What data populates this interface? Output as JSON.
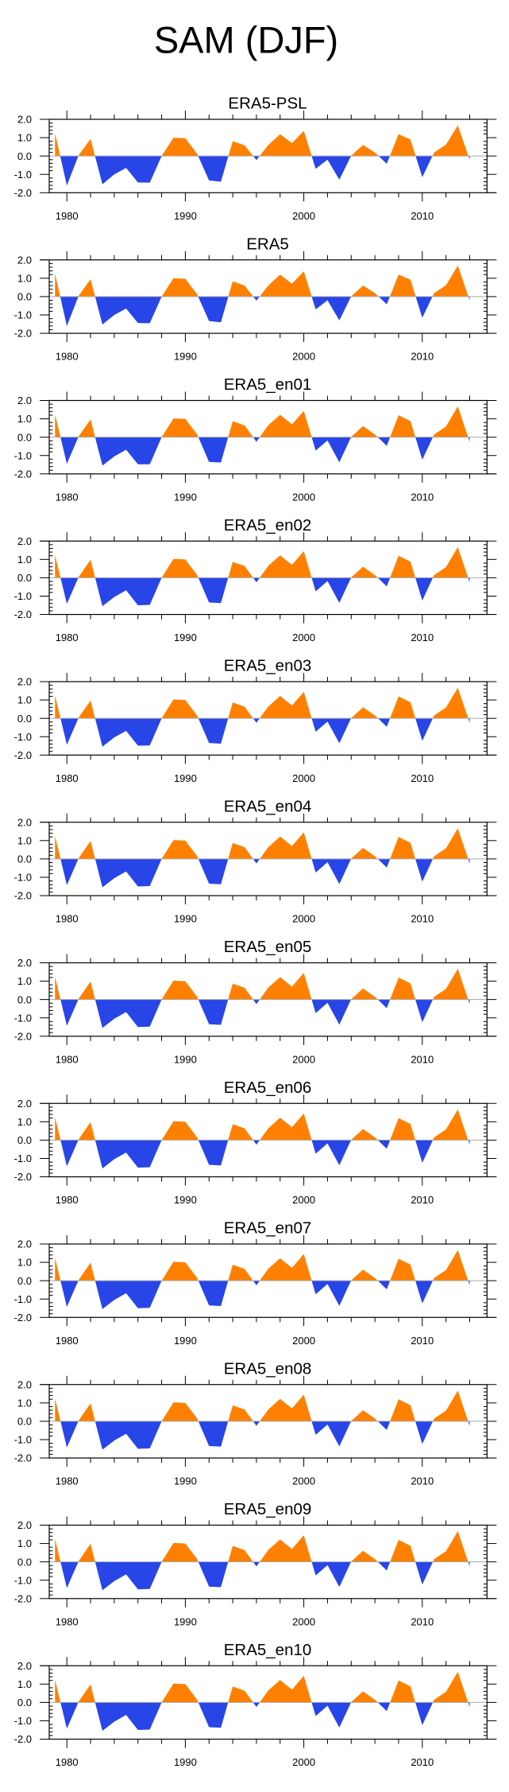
{
  "chart_data": {
    "type": "area",
    "title": "SAM (DJF)",
    "xlabel": "",
    "ylabel": "",
    "xlim": [
      1978.7,
      2015.7
    ],
    "ylim": [
      -2.0,
      2.0
    ],
    "xticks": [
      1980,
      1990,
      2000,
      2010
    ],
    "xtick_labels": [
      "1980",
      "1990",
      "2000",
      "2010"
    ],
    "yticks": [
      2.0,
      1.0,
      0.0,
      -1.0,
      -2.0
    ],
    "ytick_labels": [
      "2.0",
      "1.0",
      "0.0",
      "-1.0",
      "-2.0"
    ],
    "grid": false,
    "legend": "none",
    "colors": {
      "positive": "#ff8000",
      "negative": "#2845e8",
      "zero_line": "#a8a8a8",
      "frame": "#000000"
    },
    "x": [
      1979,
      1980,
      1981,
      1982,
      1983,
      1984,
      1985,
      1986,
      1987,
      1988,
      1989,
      1990,
      1991,
      1992,
      1993,
      1994,
      1995,
      1996,
      1997,
      1998,
      1999,
      2000,
      2001,
      2002,
      2003,
      2004,
      2005,
      2006,
      2007,
      2008,
      2009,
      2010,
      2011,
      2012,
      2013,
      2014
    ],
    "panels": [
      {
        "title": "ERA5-PSL",
        "values": [
          1.26,
          -1.61,
          0.05,
          0.93,
          -1.54,
          -1.0,
          -0.65,
          -1.44,
          -1.45,
          0.0,
          1.0,
          0.97,
          0.12,
          -1.33,
          -1.4,
          0.81,
          0.58,
          -0.22,
          0.6,
          1.19,
          0.7,
          1.37,
          -0.7,
          -0.2,
          -1.29,
          0.02,
          0.6,
          0.19,
          -0.42,
          1.19,
          0.9,
          -1.15,
          0.19,
          0.62,
          1.67,
          -0.2
        ]
      },
      {
        "title": "ERA5",
        "values": [
          1.26,
          -1.6,
          0.05,
          0.95,
          -1.52,
          -1.0,
          -0.65,
          -1.44,
          -1.45,
          0.0,
          1.0,
          0.97,
          0.12,
          -1.33,
          -1.4,
          0.83,
          0.6,
          -0.22,
          0.6,
          1.2,
          0.7,
          1.38,
          -0.7,
          -0.2,
          -1.3,
          0.02,
          0.6,
          0.19,
          -0.42,
          1.2,
          0.92,
          -1.15,
          0.19,
          0.62,
          1.69,
          -0.2
        ]
      },
      {
        "title": "ERA5_en01",
        "values": [
          1.24,
          -1.45,
          0.05,
          0.97,
          -1.55,
          -1.05,
          -0.68,
          -1.48,
          -1.48,
          0.0,
          1.02,
          1.0,
          0.15,
          -1.35,
          -1.38,
          0.87,
          0.64,
          -0.25,
          0.65,
          1.22,
          0.7,
          1.43,
          -0.73,
          -0.18,
          -1.37,
          0.02,
          0.6,
          0.15,
          -0.47,
          1.2,
          0.88,
          -1.23,
          0.15,
          0.58,
          1.68,
          -0.25
        ]
      },
      {
        "title": "ERA5_en02",
        "values": [
          1.24,
          -1.42,
          0.05,
          0.98,
          -1.55,
          -1.05,
          -0.68,
          -1.5,
          -1.48,
          0.0,
          1.03,
          1.0,
          0.15,
          -1.35,
          -1.38,
          0.87,
          0.64,
          -0.25,
          0.65,
          1.22,
          0.7,
          1.45,
          -0.74,
          -0.18,
          -1.37,
          0.02,
          0.6,
          0.15,
          -0.47,
          1.2,
          0.88,
          -1.24,
          0.15,
          0.58,
          1.67,
          -0.25
        ]
      },
      {
        "title": "ERA5_en03",
        "values": [
          1.25,
          -1.44,
          0.05,
          0.97,
          -1.54,
          -1.04,
          -0.68,
          -1.49,
          -1.48,
          0.0,
          1.03,
          1.0,
          0.15,
          -1.34,
          -1.38,
          0.87,
          0.63,
          -0.24,
          0.64,
          1.22,
          0.7,
          1.44,
          -0.73,
          -0.18,
          -1.36,
          0.02,
          0.6,
          0.16,
          -0.46,
          1.2,
          0.88,
          -1.23,
          0.16,
          0.59,
          1.67,
          -0.24
        ]
      },
      {
        "title": "ERA5_en04",
        "values": [
          1.25,
          -1.43,
          0.05,
          0.98,
          -1.55,
          -1.05,
          -0.68,
          -1.5,
          -1.48,
          0.0,
          1.03,
          1.0,
          0.15,
          -1.35,
          -1.38,
          0.87,
          0.64,
          -0.25,
          0.64,
          1.22,
          0.7,
          1.45,
          -0.74,
          -0.18,
          -1.37,
          0.02,
          0.6,
          0.15,
          -0.47,
          1.2,
          0.88,
          -1.24,
          0.15,
          0.58,
          1.67,
          -0.25
        ]
      },
      {
        "title": "ERA5_en05",
        "values": [
          1.24,
          -1.43,
          0.05,
          0.98,
          -1.55,
          -1.05,
          -0.68,
          -1.5,
          -1.48,
          0.0,
          1.03,
          1.0,
          0.15,
          -1.35,
          -1.38,
          0.87,
          0.64,
          -0.25,
          0.65,
          1.22,
          0.7,
          1.45,
          -0.74,
          -0.18,
          -1.37,
          0.02,
          0.6,
          0.15,
          -0.47,
          1.2,
          0.88,
          -1.24,
          0.15,
          0.58,
          1.68,
          -0.25
        ]
      },
      {
        "title": "ERA5_en06",
        "values": [
          1.25,
          -1.43,
          0.05,
          0.98,
          -1.55,
          -1.04,
          -0.68,
          -1.5,
          -1.48,
          0.0,
          1.03,
          1.0,
          0.15,
          -1.35,
          -1.38,
          0.87,
          0.64,
          -0.25,
          0.64,
          1.22,
          0.7,
          1.45,
          -0.74,
          -0.18,
          -1.37,
          0.02,
          0.6,
          0.15,
          -0.47,
          1.2,
          0.88,
          -1.24,
          0.15,
          0.58,
          1.67,
          -0.25
        ]
      },
      {
        "title": "ERA5_en07",
        "values": [
          1.24,
          -1.43,
          0.05,
          0.98,
          -1.55,
          -1.05,
          -0.68,
          -1.5,
          -1.48,
          0.0,
          1.03,
          1.0,
          0.15,
          -1.35,
          -1.38,
          0.87,
          0.64,
          -0.25,
          0.65,
          1.22,
          0.7,
          1.45,
          -0.74,
          -0.18,
          -1.37,
          0.02,
          0.6,
          0.15,
          -0.47,
          1.2,
          0.88,
          -1.24,
          0.15,
          0.58,
          1.67,
          -0.25
        ]
      },
      {
        "title": "ERA5_en08",
        "values": [
          1.25,
          -1.43,
          0.05,
          0.98,
          -1.55,
          -1.05,
          -0.68,
          -1.5,
          -1.48,
          0.0,
          1.03,
          1.0,
          0.15,
          -1.35,
          -1.38,
          0.87,
          0.64,
          -0.25,
          0.64,
          1.22,
          0.7,
          1.45,
          -0.74,
          -0.18,
          -1.37,
          0.02,
          0.6,
          0.15,
          -0.47,
          1.2,
          0.88,
          -1.24,
          0.15,
          0.58,
          1.67,
          -0.25
        ]
      },
      {
        "title": "ERA5_en09",
        "values": [
          1.25,
          -1.43,
          0.05,
          0.98,
          -1.55,
          -1.05,
          -0.68,
          -1.5,
          -1.48,
          0.0,
          1.03,
          1.0,
          0.15,
          -1.35,
          -1.38,
          0.87,
          0.64,
          -0.25,
          0.65,
          1.22,
          0.7,
          1.45,
          -0.74,
          -0.18,
          -1.37,
          0.02,
          0.6,
          0.15,
          -0.47,
          1.2,
          0.88,
          -1.24,
          0.15,
          0.58,
          1.67,
          -0.25
        ]
      },
      {
        "title": "ERA5_en10",
        "values": [
          1.24,
          -1.43,
          0.05,
          0.98,
          -1.55,
          -1.05,
          -0.68,
          -1.5,
          -1.48,
          0.0,
          1.03,
          1.0,
          0.15,
          -1.35,
          -1.38,
          0.87,
          0.64,
          -0.25,
          0.65,
          1.22,
          0.7,
          1.45,
          -0.74,
          -0.18,
          -1.37,
          0.02,
          0.6,
          0.15,
          -0.47,
          1.2,
          0.88,
          -1.24,
          0.15,
          0.58,
          1.67,
          -0.25
        ]
      }
    ]
  }
}
